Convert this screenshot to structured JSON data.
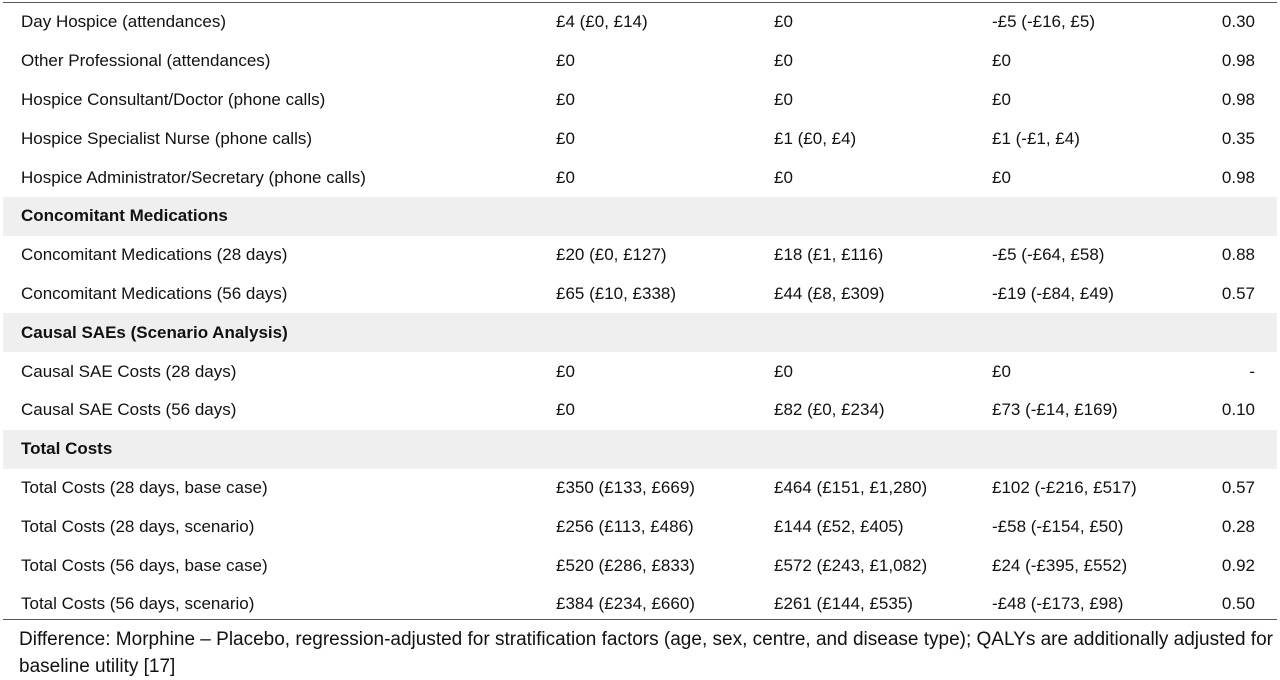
{
  "rows": [
    {
      "type": "data",
      "cells": [
        "Day Hospice (attendances)",
        "£4 (£0, £14)",
        "£0",
        "-£5 (-£16, £5)",
        "0.30"
      ]
    },
    {
      "type": "data",
      "cells": [
        "Other Professional (attendances)",
        "£0",
        "£0",
        "£0",
        "0.98"
      ]
    },
    {
      "type": "data",
      "cells": [
        "Hospice Consultant/Doctor (phone calls)",
        "£0",
        "£0",
        "£0",
        "0.98"
      ]
    },
    {
      "type": "data",
      "cells": [
        "Hospice Specialist Nurse (phone calls)",
        "£0",
        "£1 (£0, £4)",
        "£1 (-£1, £4)",
        "0.35"
      ]
    },
    {
      "type": "data",
      "cells": [
        "Hospice Administrator/Secretary (phone calls)",
        "£0",
        "£0",
        "£0",
        "0.98"
      ]
    },
    {
      "type": "section",
      "cells": [
        "Concomitant Medications"
      ]
    },
    {
      "type": "data",
      "cells": [
        "Concomitant Medications (28 days)",
        "£20 (£0, £127)",
        "£18 (£1, £116)",
        "-£5 (-£64, £58)",
        "0.88"
      ]
    },
    {
      "type": "data",
      "cells": [
        "Concomitant Medications (56 days)",
        "£65 (£10, £338)",
        "£44 (£8, £309)",
        "-£19 (-£84, £49)",
        "0.57"
      ]
    },
    {
      "type": "section",
      "cells": [
        "Causal SAEs (Scenario Analysis)"
      ]
    },
    {
      "type": "data",
      "cells": [
        "Causal SAE Costs (28 days)",
        "£0",
        "£0",
        "£0",
        "-"
      ]
    },
    {
      "type": "data",
      "cells": [
        "Causal SAE Costs (56 days)",
        "£0",
        "£82 (£0, £234)",
        "£73 (-£14, £169)",
        "0.10"
      ]
    },
    {
      "type": "section",
      "cells": [
        "Total Costs"
      ]
    },
    {
      "type": "data",
      "cells": [
        "Total Costs (28 days, base case)",
        "£350 (£133, £669)",
        "£464 (£151, £1,280)",
        "£102 (-£216, £517)",
        "0.57"
      ]
    },
    {
      "type": "data",
      "cells": [
        "Total Costs (28 days, scenario)",
        "£256 (£113, £486)",
        "£144 (£52, £405)",
        "-£58 (-£154, £50)",
        "0.28"
      ]
    },
    {
      "type": "data",
      "cells": [
        "Total Costs (56 days, base case)",
        "£520 (£286, £833)",
        "£572 (£243, £1,082)",
        "£24 (-£395, £552)",
        "0.92"
      ]
    },
    {
      "type": "data",
      "cells": [
        "Total Costs (56 days, scenario)",
        "£384 (£234, £660)",
        "£261 (£144, £535)",
        "-£48 (-£173, £98)",
        "0.50"
      ]
    }
  ],
  "footnote": "Difference: Morphine – Placebo, regression-adjusted for stratification factors (age, sex, centre, and disease type); QALYs are additionally adjusted for baseline utility [17]"
}
